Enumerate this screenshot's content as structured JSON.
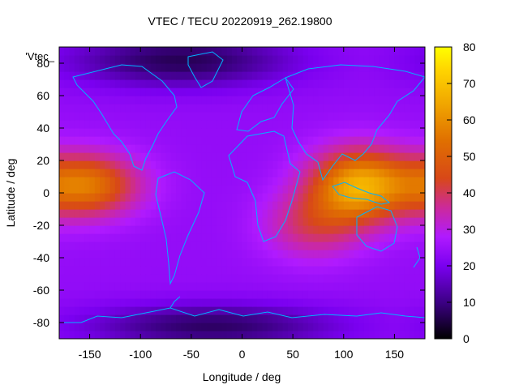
{
  "chart_data": {
    "type": "heatmap",
    "title": "VTEC / TECU 20220919_262.19800",
    "xlabel": "Longitude / deg",
    "ylabel": "Latitude / deg",
    "legend_label": "'Vtec_",
    "xlim": [
      -180,
      180
    ],
    "ylim": [
      -90,
      90
    ],
    "x_ticks": [
      -150,
      -100,
      -50,
      0,
      50,
      100,
      150
    ],
    "y_ticks": [
      -80,
      -60,
      -40,
      -20,
      0,
      20,
      40,
      60,
      80
    ],
    "colorbar": {
      "range": [
        0,
        80
      ],
      "ticks": [
        0,
        10,
        20,
        30,
        40,
        50,
        60,
        70,
        80
      ]
    },
    "colormap": [
      "#000000",
      "#3a0080",
      "#7a00f0",
      "#b01aff",
      "#cc2a9a",
      "#d84818",
      "#e07000",
      "#f0a400",
      "#ffd400",
      "#ffff00"
    ],
    "coastline_color": "#00b4ff",
    "features": [
      {
        "name": "pacific-equatorial-peak",
        "lon": -155,
        "lat": 5,
        "lon_width": 38,
        "lat_width": 14,
        "tec": 55
      },
      {
        "name": "asia-equatorial-peak",
        "lon": 115,
        "lat": 5,
        "lon_width": 35,
        "lat_width": 16,
        "tec": 62
      },
      {
        "name": "indian-ocean-enhancement",
        "lon": 70,
        "lat": -20,
        "lon_width": 35,
        "lat_width": 15,
        "tec": 38
      },
      {
        "name": "polar-minimum-north",
        "lon": -60,
        "lat": 82,
        "lon_width": 80,
        "lat_width": 12,
        "tec": 6
      },
      {
        "name": "polar-minimum-south",
        "lon": -30,
        "lat": -82,
        "lon_width": 90,
        "lat_width": 10,
        "tec": 7
      }
    ],
    "background_tec": 22,
    "grid": false
  }
}
